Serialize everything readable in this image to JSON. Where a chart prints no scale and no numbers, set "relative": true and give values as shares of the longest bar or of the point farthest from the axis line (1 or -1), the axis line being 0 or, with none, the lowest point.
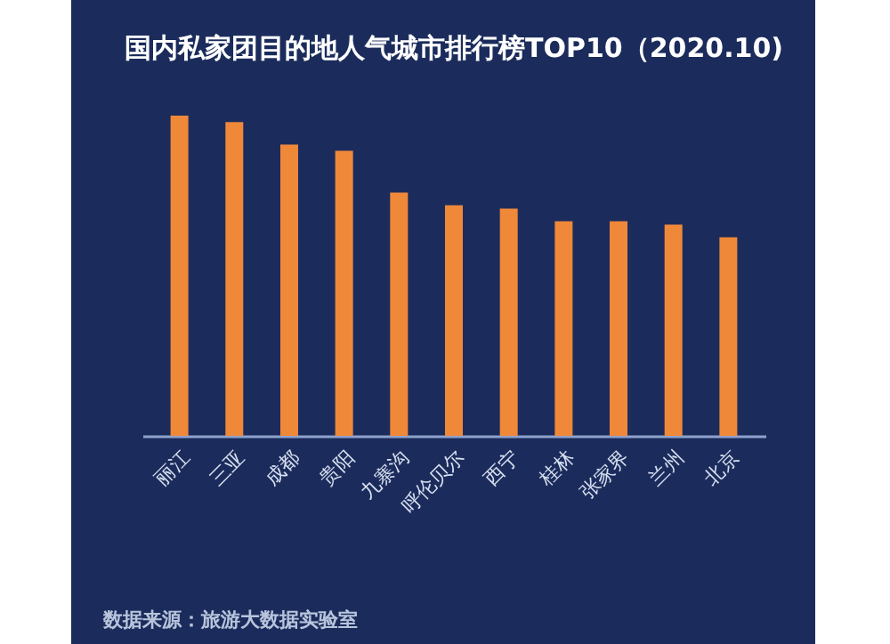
{
  "chart_data": {
    "type": "bar",
    "title": "国内私家团目的地人气城市排行榜TOP10（2020.10)",
    "categories": [
      "丽江",
      "三亚",
      "成都",
      "贵阳",
      "九寨沟",
      "呼伦贝尔",
      "西宁",
      "桂林",
      "张家界",
      "兰州",
      "北京"
    ],
    "values": [
      1,
      0.98,
      0.91,
      0.89,
      0.76,
      0.72,
      0.71,
      0.67,
      0.67,
      0.66,
      0.62
    ],
    "color": "#f0883a",
    "relative": true,
    "annotations": [
      "数据来源：旅游大数据实验室"
    ]
  }
}
